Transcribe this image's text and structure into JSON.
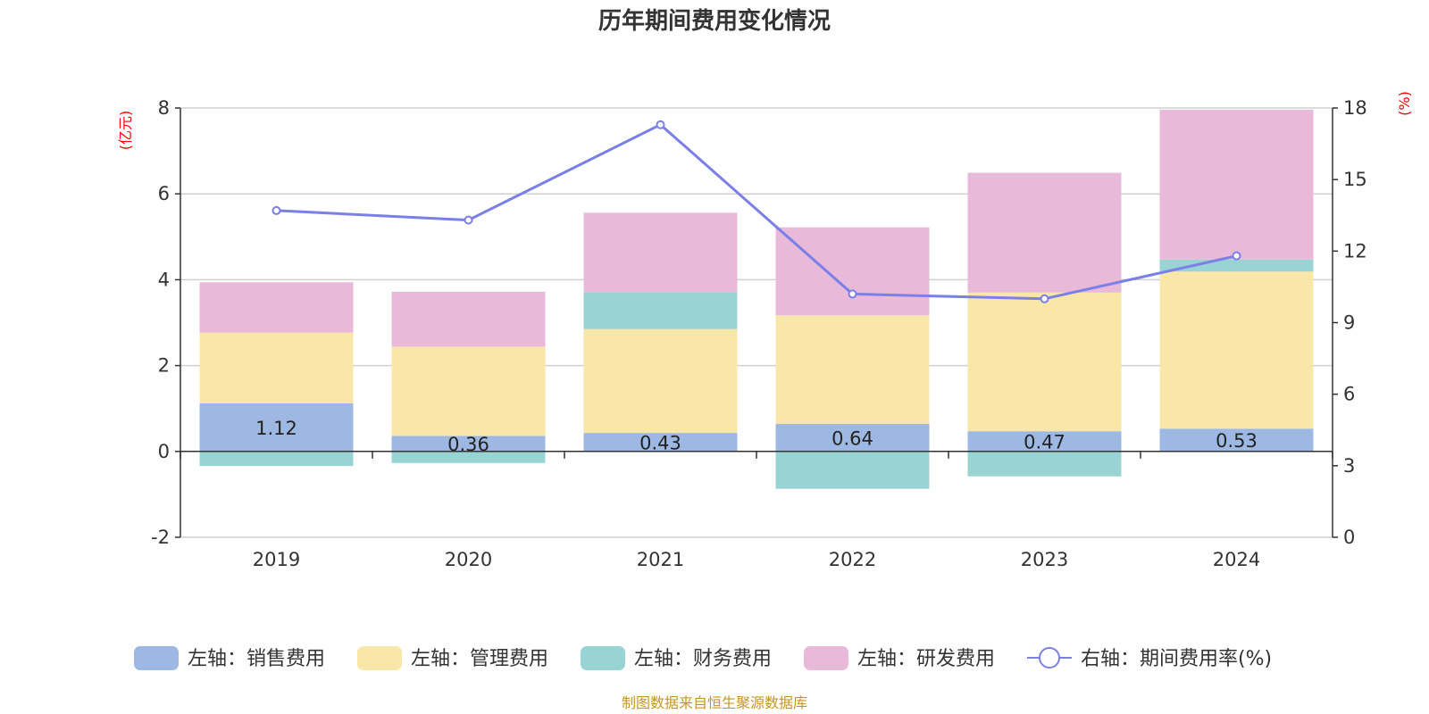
{
  "chart_data": {
    "type": "bar",
    "title": "历年期间费用变化情况",
    "categories": [
      "2019",
      "2020",
      "2021",
      "2022",
      "2023",
      "2024"
    ],
    "left_axis": {
      "unit_label": "(亿元)",
      "range": [
        -2,
        8
      ],
      "ticks": [
        -2,
        0,
        2,
        4,
        6,
        8
      ]
    },
    "right_axis": {
      "unit_label": "(%)",
      "range": [
        0,
        18
      ],
      "ticks": [
        0,
        3,
        6,
        9,
        12,
        15,
        18
      ]
    },
    "series": [
      {
        "name": "销售费用",
        "legend": "左轴：销售费用",
        "type": "bar",
        "axis": "left",
        "color": "#9db8e2",
        "values": [
          1.12,
          0.36,
          0.43,
          0.64,
          0.47,
          0.53
        ],
        "labels": [
          "1.12",
          "0.36",
          "0.43",
          "0.64",
          "0.47",
          "0.53"
        ]
      },
      {
        "name": "管理费用",
        "legend": "左轴：管理费用",
        "type": "bar",
        "axis": "left",
        "color": "#f8e7a8",
        "values": [
          1.65,
          2.08,
          2.42,
          2.53,
          3.23,
          3.66
        ]
      },
      {
        "name": "财务费用",
        "legend": "左轴：财务费用",
        "type": "bar",
        "axis": "left",
        "color": "#98d4d4",
        "values": [
          -0.34,
          -0.27,
          0.86,
          -0.87,
          -0.58,
          0.28
        ]
      },
      {
        "name": "研发费用",
        "legend": "左轴：研发费用",
        "type": "bar",
        "axis": "left",
        "color": "#e8b9d9",
        "values": [
          1.17,
          1.28,
          1.85,
          2.05,
          2.79,
          3.49
        ]
      },
      {
        "name": "期间费用率(%)",
        "legend": "右轴：期间费用率(%)",
        "type": "line",
        "axis": "right",
        "color": "#7b7fe8",
        "values": [
          13.7,
          13.3,
          17.3,
          10.2,
          10.0,
          11.8
        ]
      }
    ],
    "source": "制图数据来自恒生聚源数据库"
  }
}
